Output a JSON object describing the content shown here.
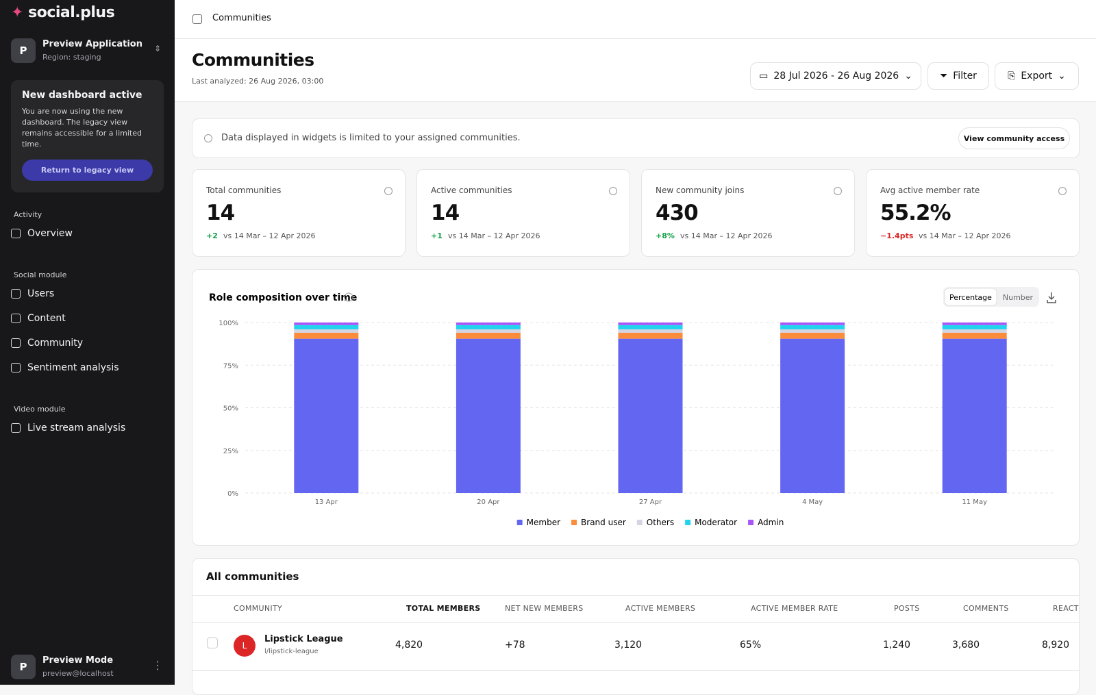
{
  "sidebar": {
    "brand": "social.plus",
    "app": {
      "initial": "P",
      "name": "Preview Application",
      "region": "Region: staging"
    },
    "notice": {
      "title": "New dashboard active",
      "text": "You are now using the new dashboard. The legacy view remains accessible for a limited time.",
      "button": "Return to legacy view"
    },
    "sections": [
      {
        "label": "Activity",
        "items": [
          "Overview"
        ]
      },
      {
        "label": "Social module",
        "items": [
          "Users",
          "Content",
          "Community",
          "Sentiment analysis"
        ]
      },
      {
        "label": "Video module",
        "items": [
          "Live stream analysis"
        ]
      }
    ],
    "user": {
      "initial": "P",
      "name": "Preview Mode",
      "email": "preview@localhost"
    }
  },
  "topbar": {
    "breadcrumb": "Communities"
  },
  "header": {
    "title": "Communities",
    "subtitle": "Last analyzed: 26 Aug 2026, 03:00",
    "date_range": "28 Jul 2026 - 26 Aug 2026",
    "filter": "Filter",
    "export": "Export"
  },
  "notice": {
    "text": "Data displayed in widgets is limited to your assigned communities.",
    "button": "View community access"
  },
  "kpis": [
    {
      "label": "Total communities",
      "value": "14",
      "delta": "+2",
      "delta_color": "#16a34a",
      "compare": "vs 14 Mar – 12 Apr 2026"
    },
    {
      "label": "Active communities",
      "value": "14",
      "delta": "+1",
      "delta_color": "#16a34a",
      "compare": "vs 14 Mar – 12 Apr 2026"
    },
    {
      "label": "New community joins",
      "value": "430",
      "delta": "+8%",
      "delta_color": "#16a34a",
      "compare": "vs 14 Mar – 12 Apr 2026"
    },
    {
      "label": "Avg active member rate",
      "value": "55.2%",
      "delta": "−1.4pts",
      "delta_color": "#dc2626",
      "compare": "vs 14 Mar – 12 Apr 2026"
    }
  ],
  "chart_data": {
    "type": "stacked_bar",
    "title": "Role composition over time",
    "toggle": [
      "Percentage",
      "Number"
    ],
    "categories": [
      "13 Apr",
      "20 Apr",
      "27 Apr",
      "4 May",
      "11 May"
    ],
    "series": [
      {
        "name": "Member",
        "color": "#6366f1",
        "values": [
          90.5,
          90.5,
          90.5,
          90.5,
          90.5
        ]
      },
      {
        "name": "Brand user",
        "color": "#fb8c3c",
        "values": [
          3.5,
          3.5,
          3.5,
          3.5,
          3.5
        ]
      },
      {
        "name": "Others",
        "color": "#d4d4e2",
        "values": [
          2,
          2,
          2,
          2,
          2
        ]
      },
      {
        "name": "Moderator",
        "color": "#22d3ee",
        "values": [
          2.5,
          2.5,
          2.5,
          2.5,
          2.5
        ]
      },
      {
        "name": "Admin",
        "color": "#a855f7",
        "values": [
          1.5,
          1.5,
          1.5,
          1.5,
          1.5
        ]
      }
    ],
    "ylim": [
      0,
      100
    ],
    "yticks": [
      {
        "value": 0,
        "label": "0%"
      },
      {
        "value": 25,
        "label": "25%"
      },
      {
        "value": 50,
        "label": "50%"
      },
      {
        "value": 75,
        "label": "75%"
      },
      {
        "value": 100,
        "label": "100%"
      }
    ],
    "grid": true
  },
  "table": {
    "title": "All communities",
    "columns": [
      "COMMUNITY",
      "TOTAL MEMBERS",
      "NET NEW MEMBERS",
      "ACTIVE MEMBERS",
      "ACTIVE MEMBER RATE",
      "POSTS",
      "COMMENTS",
      "REACTIONS"
    ],
    "rows": [
      {
        "initial": "L",
        "name": "Lipstick League",
        "handle": "l/lipstick-league",
        "cells": [
          "4,820",
          "+78",
          "3,120",
          "65%",
          "1,240",
          "3,680",
          "8,920"
        ]
      }
    ]
  }
}
